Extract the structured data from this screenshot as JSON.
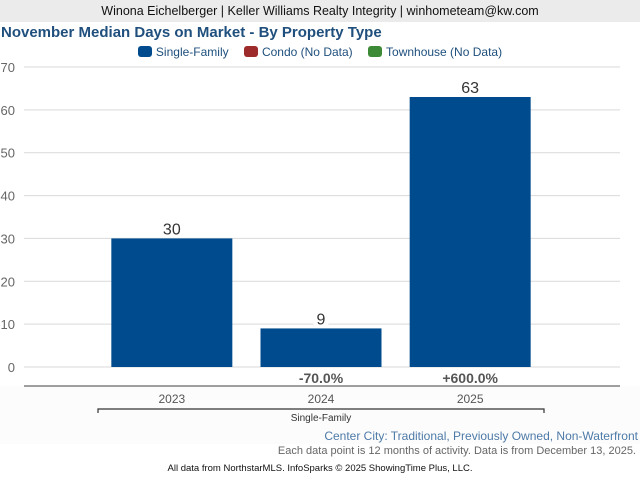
{
  "header": {
    "text": "Winona Eichelberger | Keller Williams Realty Integrity | winhometeam@kw.com"
  },
  "legend": {
    "items": [
      {
        "label": "Single-Family",
        "color": "#004b8d"
      },
      {
        "label": "Condo (No Data)",
        "color": "#9e2b2b"
      },
      {
        "label": "Townhouse (No Data)",
        "color": "#3c8a36"
      }
    ]
  },
  "footer": {
    "subtitle": "Center City: Traditional, Previously Owned, Non-Waterfront",
    "note": "Each data point is 12 months of activity. Data is from December 13, 2025.",
    "credit": "All data from NorthstarMLS. InfoSparks © 2025 ShowingTime Plus, LLC."
  },
  "chart_data": {
    "type": "bar",
    "title": "November Median Days on Market - By Property Type",
    "xlabel": "",
    "ylabel": "",
    "ylim": [
      0,
      70
    ],
    "yticks": [
      0,
      10,
      20,
      30,
      40,
      50,
      60,
      70
    ],
    "grid": true,
    "legend_position": "top-center",
    "categories": [
      "2023",
      "2024",
      "2025"
    ],
    "group_label": "Single-Family",
    "series": [
      {
        "name": "Single-Family",
        "color": "#004b8d",
        "values": [
          30,
          9,
          63
        ],
        "value_labels": [
          "30",
          "9",
          "63"
        ],
        "change_labels": [
          "",
          "-70.0%",
          "+600.0%"
        ]
      }
    ]
  }
}
